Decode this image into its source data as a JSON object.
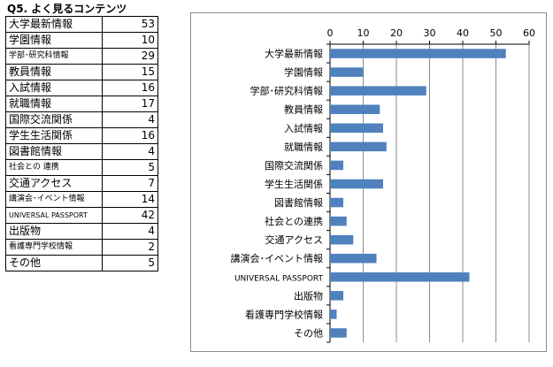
{
  "header": {
    "title": "Q5. よく見るコンテンツ"
  },
  "table": {
    "rows": [
      {
        "label": "大学最新情報",
        "value": "53"
      },
      {
        "label": "学園情報",
        "value": "10"
      },
      {
        "label": "学部･研究科情報",
        "value": "29"
      },
      {
        "label": "教員情報",
        "value": "15"
      },
      {
        "label": "入試情報",
        "value": "16"
      },
      {
        "label": "就職情報",
        "value": "17"
      },
      {
        "label": "国際交流関係",
        "value": "4"
      },
      {
        "label": "学生生活関係",
        "value": "16"
      },
      {
        "label": "図書館情報",
        "value": "4"
      },
      {
        "label": "社会との 連携",
        "value": "5"
      },
      {
        "label": "交通アクセス",
        "value": "7"
      },
      {
        "label": "講演会･イベント情報",
        "value": "14"
      },
      {
        "label": "UNIVERSAL PASSPORT",
        "value": "42"
      },
      {
        "label": "出版物",
        "value": "4"
      },
      {
        "label": "看護専門学校情報",
        "value": "2"
      },
      {
        "label": "その他",
        "value": "5"
      }
    ]
  },
  "chart_data": {
    "type": "bar",
    "orientation": "horizontal",
    "categories": [
      "大学最新情報",
      "学園情報",
      "学部･研究科情報",
      "教員情報",
      "入試情報",
      "就職情報",
      "国際交流関係",
      "学生生活関係",
      "図書館情報",
      "社会との連携",
      "交通アクセス",
      "講演会･イベント情報",
      "UNIVERSAL PASSPORT",
      "出版物",
      "看護専門学校情報",
      "その他"
    ],
    "values": [
      53,
      10,
      29,
      15,
      16,
      17,
      4,
      16,
      4,
      5,
      7,
      14,
      42,
      4,
      2,
      5
    ],
    "ticks": [
      "0",
      "10",
      "20",
      "30",
      "40",
      "50",
      "60"
    ],
    "xlim": [
      0,
      60
    ],
    "axis_position": "top",
    "grid": true,
    "legend": false,
    "bar_color": "#4f81bd",
    "grid_color": "#8c8c8c",
    "title": "",
    "xlabel": "",
    "ylabel": ""
  }
}
